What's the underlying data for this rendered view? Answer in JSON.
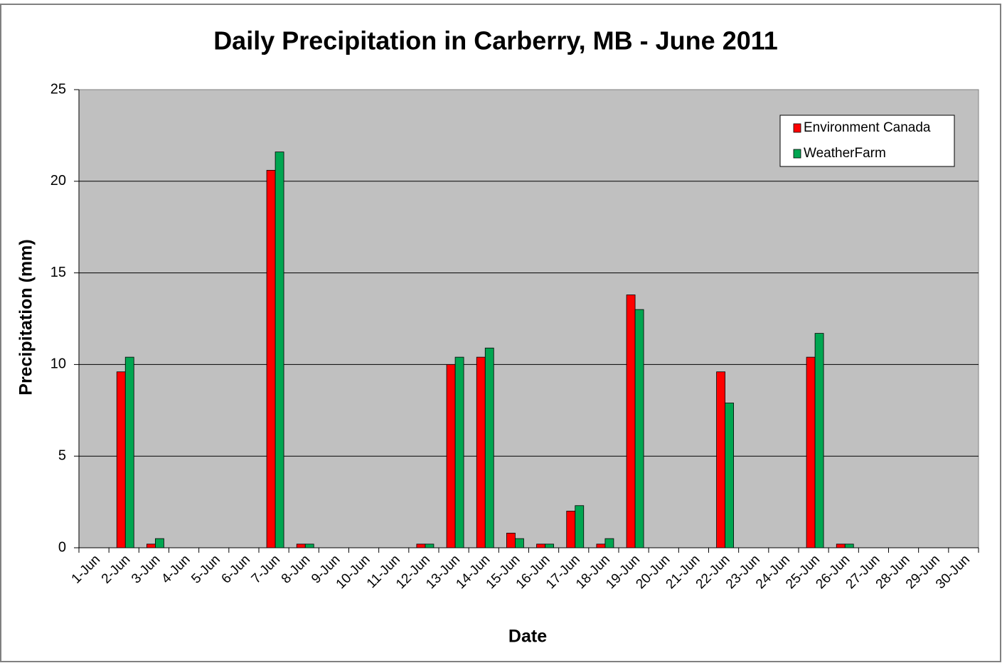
{
  "chart_data": {
    "type": "bar",
    "title": "Daily Precipitation in Carberry, MB - June 2011",
    "x_label": "Date",
    "y_label": "Precipitation (mm)",
    "categories": [
      "1-Jun",
      "2-Jun",
      "3-Jun",
      "4-Jun",
      "5-Jun",
      "6-Jun",
      "7-Jun",
      "8-Jun",
      "9-Jun",
      "10-Jun",
      "11-Jun",
      "12-Jun",
      "13-Jun",
      "14-Jun",
      "15-Jun",
      "16-Jun",
      "17-Jun",
      "18-Jun",
      "19-Jun",
      "20-Jun",
      "21-Jun",
      "22-Jun",
      "23-Jun",
      "24-Jun",
      "25-Jun",
      "26-Jun",
      "27-Jun",
      "28-Jun",
      "29-Jun",
      "30-Jun"
    ],
    "series": [
      {
        "name": "Environment Canada",
        "color": "#ff0000",
        "values": [
          0,
          9.6,
          0.2,
          0,
          0,
          0,
          20.6,
          0.2,
          0,
          0,
          0,
          0.2,
          10.0,
          10.4,
          0.8,
          0.2,
          2.0,
          0.2,
          13.8,
          0,
          0,
          9.6,
          0,
          0,
          10.4,
          0.2,
          0,
          0,
          0,
          0
        ]
      },
      {
        "name": "WeatherFarm",
        "color": "#00a651",
        "values": [
          0,
          10.4,
          0.5,
          0,
          0,
          0,
          21.6,
          0.2,
          0,
          0,
          0,
          0.2,
          10.4,
          10.9,
          0.5,
          0.2,
          2.3,
          0.5,
          13.0,
          0,
          0,
          7.9,
          0,
          0,
          11.7,
          0.2,
          0,
          0,
          0,
          0
        ]
      }
    ],
    "ylim": [
      0,
      25
    ],
    "yticks": [
      0,
      5,
      10,
      15,
      20,
      25
    ],
    "grid": true,
    "legend": "upper right",
    "plot_background": "#c0c0c0"
  }
}
